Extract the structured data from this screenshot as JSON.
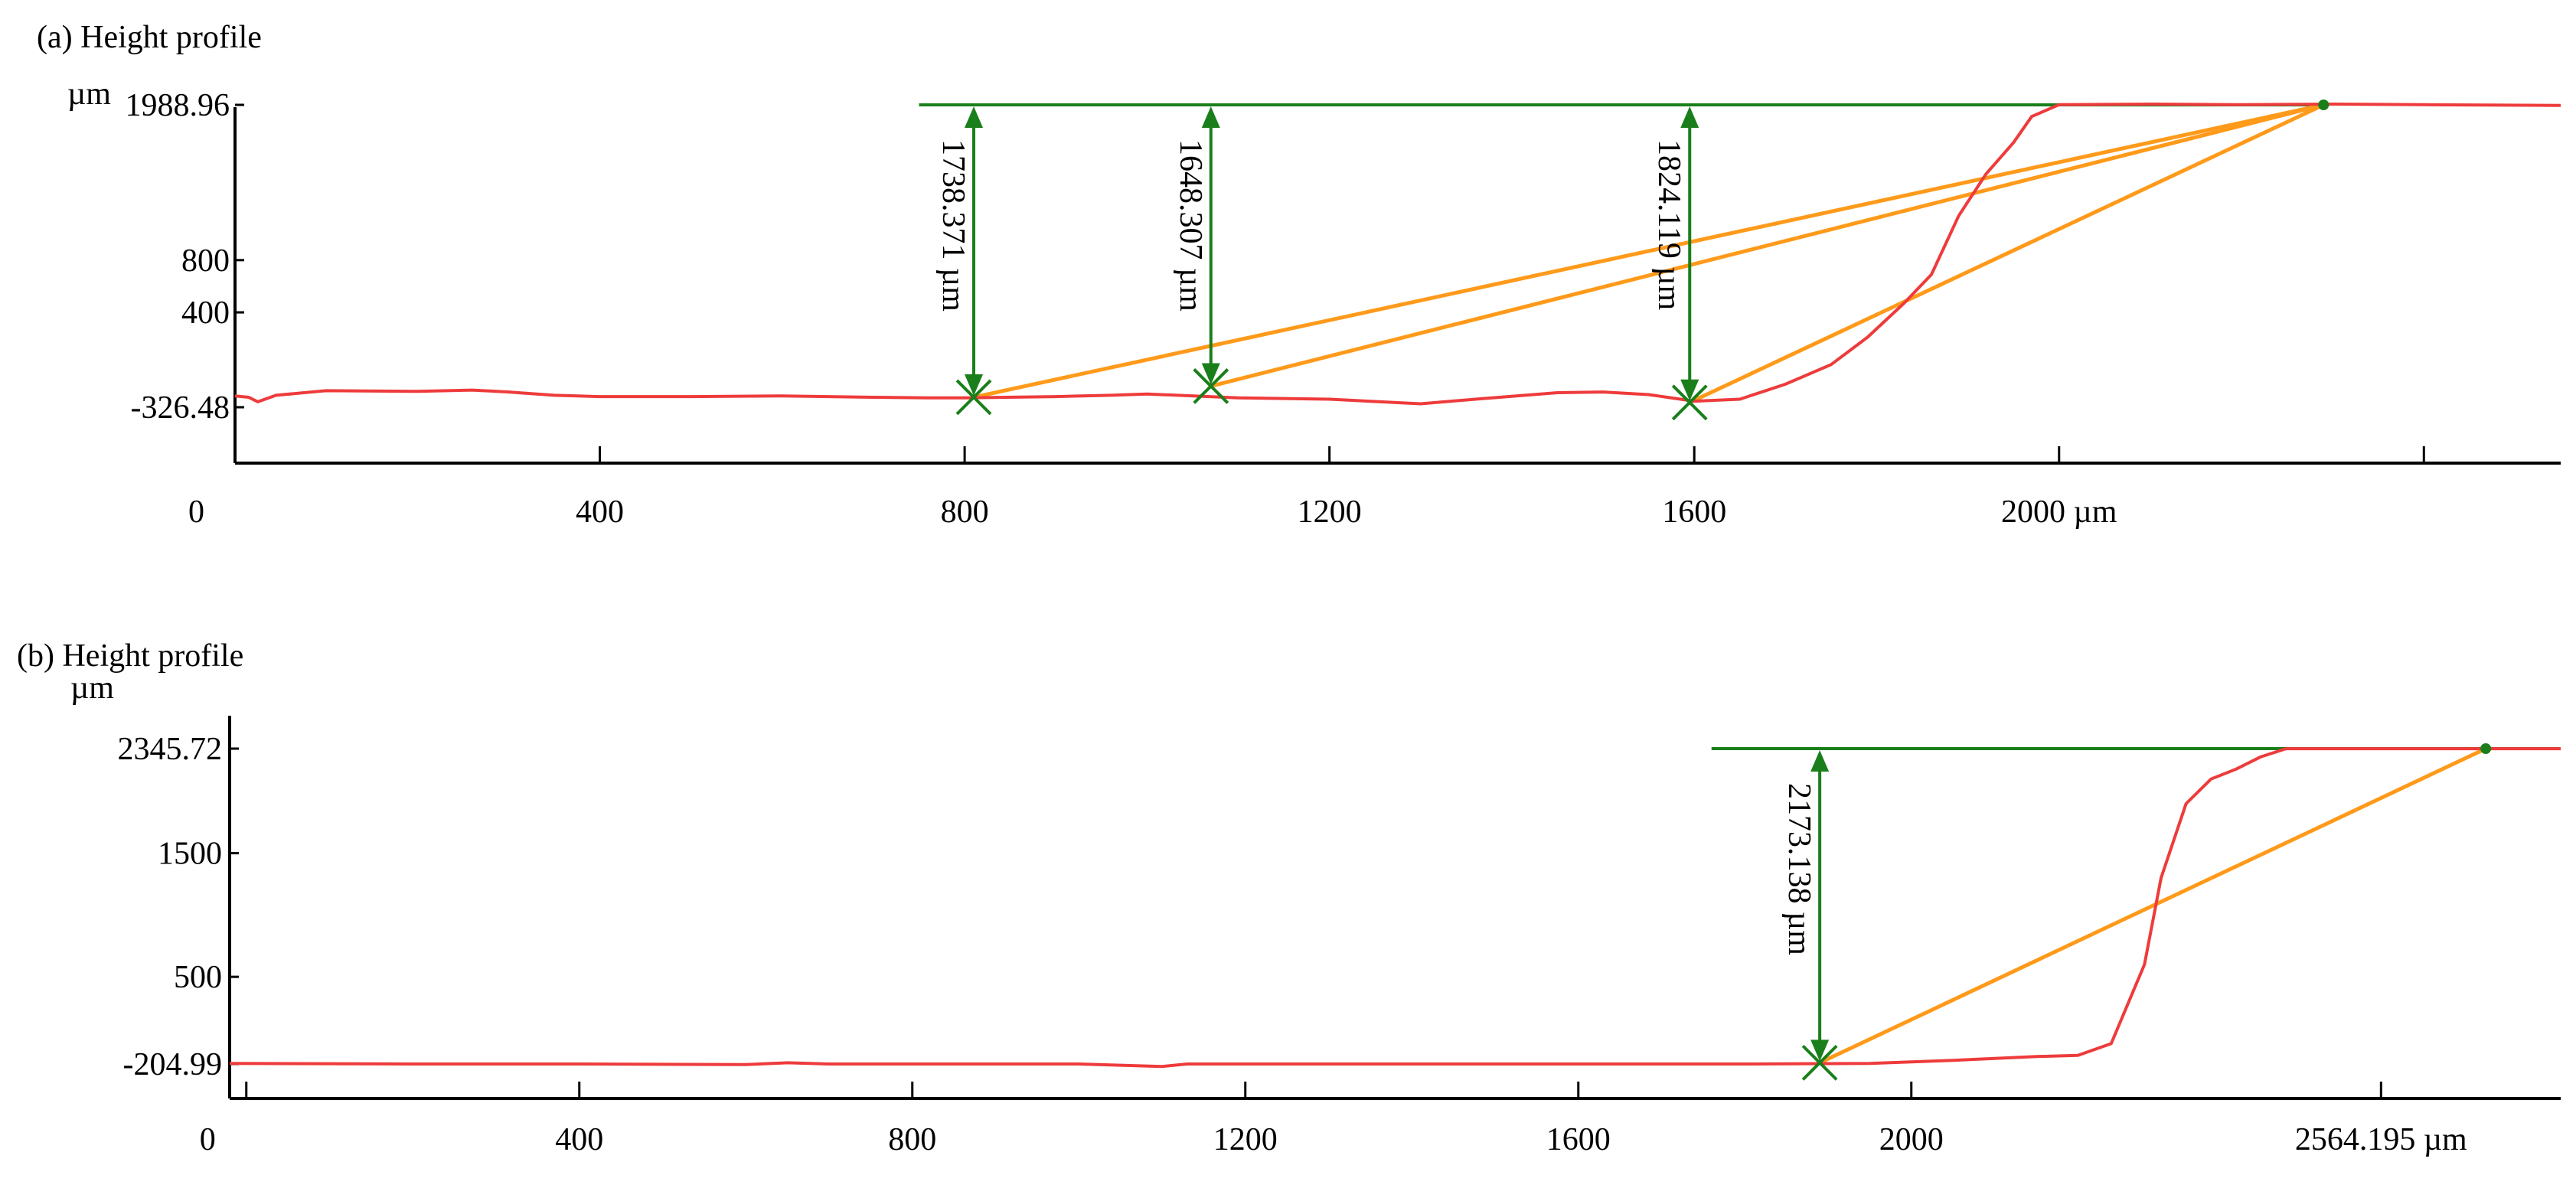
{
  "chart_data": [
    {
      "type": "line",
      "title": "(a) Height profile",
      "ylabel": "µm",
      "xlim": [
        0,
        2550
      ],
      "ylim": [
        -326.48,
        1988.96
      ],
      "yticks": [
        {
          "v": 1988.96,
          "label": "1988.96"
        },
        {
          "v": 800,
          "label": "800"
        },
        {
          "v": 400,
          "label": "400"
        },
        {
          "v": -326.48,
          "label": "-326.48"
        }
      ],
      "xticks": [
        {
          "v": 0,
          "label": "0"
        },
        {
          "v": 400,
          "label": "400"
        },
        {
          "v": 800,
          "label": "800"
        },
        {
          "v": 1200,
          "label": "1200"
        },
        {
          "v": 1600,
          "label": "1600"
        },
        {
          "v": 2000,
          "label": "2000 µm"
        },
        {
          "v": 2400,
          "label": ""
        }
      ],
      "colors": {
        "profile": "#ee3b3b",
        "reference": "#1a7f1a",
        "chord": "#ff9a1a",
        "axis": "#000000"
      },
      "series": [
        {
          "values": [
            [
              0,
              -240
            ],
            [
              15,
              -250
            ],
            [
              25,
              -285
            ],
            [
              45,
              -235
            ],
            [
              100,
              -200
            ],
            [
              200,
              -205
            ],
            [
              260,
              -195
            ],
            [
              300,
              -210
            ],
            [
              350,
              -235
            ],
            [
              400,
              -245
            ],
            [
              500,
              -245
            ],
            [
              600,
              -240
            ],
            [
              700,
              -250
            ],
            [
              760,
              -255
            ],
            [
              800,
              -255
            ],
            [
              900,
              -245
            ],
            [
              960,
              -235
            ],
            [
              1000,
              -225
            ],
            [
              1100,
              -255
            ],
            [
              1200,
              -265
            ],
            [
              1300,
              -300
            ],
            [
              1360,
              -265
            ],
            [
              1450,
              -215
            ],
            [
              1500,
              -210
            ],
            [
              1550,
              -230
            ],
            [
              1600,
              -280
            ],
            [
              1650,
              -265
            ],
            [
              1700,
              -150
            ],
            [
              1750,
              0
            ],
            [
              1790,
              210
            ],
            [
              1830,
              470
            ],
            [
              1860,
              690
            ],
            [
              1890,
              1140
            ],
            [
              1920,
              1460
            ],
            [
              1950,
              1700
            ],
            [
              1970,
              1900
            ],
            [
              2000,
              1990
            ],
            [
              2100,
              1995
            ],
            [
              2200,
              1990
            ],
            [
              2300,
              1995
            ],
            [
              2400,
              1990
            ],
            [
              2550,
              1985
            ]
          ]
        }
      ],
      "reference_line": {
        "y": 1988.96,
        "x_from": 750,
        "x_to": 2290
      },
      "measurements": [
        {
          "x": 810,
          "y": -250,
          "label": "1738.371 µm"
        },
        {
          "x": 1070,
          "y": -165,
          "label": "1648.307 µm"
        },
        {
          "x": 1595,
          "y": -290,
          "label": "1824.119 µm"
        }
      ],
      "chord_end": {
        "x": 2290,
        "y": 1988.96
      }
    },
    {
      "type": "line",
      "title": "(b) Height profile",
      "ylabel": "µm",
      "xlim": [
        -20,
        2780
      ],
      "ylim": [
        -204.99,
        2345.72
      ],
      "yticks": [
        {
          "v": 2345.72,
          "label": "2345.72"
        },
        {
          "v": 1500,
          "label": "1500"
        },
        {
          "v": 500,
          "label": "500"
        },
        {
          "v": -204.99,
          "label": "-204.99"
        }
      ],
      "xticks": [
        {
          "v": 0,
          "label": "0"
        },
        {
          "v": 400,
          "label": "400"
        },
        {
          "v": 800,
          "label": "800"
        },
        {
          "v": 1200,
          "label": "1200"
        },
        {
          "v": 1600,
          "label": "1600"
        },
        {
          "v": 2000,
          "label": "2000"
        },
        {
          "v": 2564.195,
          "label": "2564.195 µm"
        }
      ],
      "colors": {
        "profile": "#ee3b3b",
        "reference": "#1a7f1a",
        "chord": "#ff9a1a",
        "axis": "#000000"
      },
      "series": [
        {
          "values": [
            [
              -20,
              -200
            ],
            [
              200,
              -205
            ],
            [
              400,
              -205
            ],
            [
              600,
              -210
            ],
            [
              650,
              -195
            ],
            [
              700,
              -205
            ],
            [
              1000,
              -205
            ],
            [
              1100,
              -225
            ],
            [
              1130,
              -205
            ],
            [
              1400,
              -205
            ],
            [
              1600,
              -205
            ],
            [
              1800,
              -205
            ],
            [
              1950,
              -200
            ],
            [
              2050,
              -175
            ],
            [
              2150,
              -145
            ],
            [
              2200,
              -135
            ],
            [
              2240,
              -40
            ],
            [
              2280,
              600
            ],
            [
              2300,
              1300
            ],
            [
              2330,
              1900
            ],
            [
              2360,
              2100
            ],
            [
              2390,
              2180
            ],
            [
              2420,
              2280
            ],
            [
              2450,
              2345
            ],
            [
              2600,
              2345
            ],
            [
              2780,
              2345
            ]
          ]
        }
      ],
      "reference_line": {
        "y": 2345.72,
        "x_from": 1760,
        "x_to": 2780
      },
      "measurements": [
        {
          "x": 1890,
          "y": -195,
          "label": "2173.138 µm"
        }
      ],
      "chord_end": {
        "x": 2690,
        "y": 2345.72
      }
    }
  ]
}
